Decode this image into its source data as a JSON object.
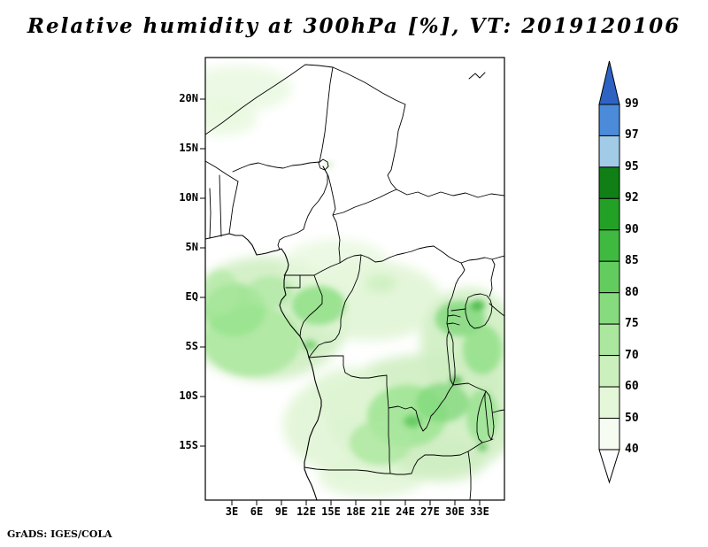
{
  "title": "Relative humidity at 300hPa [%], VT: 2019120106",
  "footer": "GrADS: IGES/COLA",
  "map": {
    "lat_ticks": [
      {
        "label": "20N",
        "value": 20
      },
      {
        "label": "15N",
        "value": 15
      },
      {
        "label": "10N",
        "value": 10
      },
      {
        "label": "5N",
        "value": 5
      },
      {
        "label": "EQ",
        "value": 0
      },
      {
        "label": "5S",
        "value": -5
      },
      {
        "label": "10S",
        "value": -10
      },
      {
        "label": "15S",
        "value": -15
      }
    ],
    "lon_ticks": [
      {
        "label": "3E",
        "value": 3
      },
      {
        "label": "6E",
        "value": 6
      },
      {
        "label": "9E",
        "value": 9
      },
      {
        "label": "12E",
        "value": 12
      },
      {
        "label": "15E",
        "value": 15
      },
      {
        "label": "18E",
        "value": 18
      },
      {
        "label": "21E",
        "value": 21
      },
      {
        "label": "24E",
        "value": 24
      },
      {
        "label": "27E",
        "value": 27
      },
      {
        "label": "30E",
        "value": 30
      },
      {
        "label": "33E",
        "value": 33
      }
    ]
  },
  "colorbar": {
    "labels": [
      "99",
      "97",
      "95",
      "92",
      "90",
      "85",
      "80",
      "75",
      "70",
      "60",
      "50",
      "40"
    ],
    "segments": [
      {
        "range": ">99",
        "color": "#2E63C4",
        "arrow": "up"
      },
      {
        "range": "97-99",
        "color": "#4C8BD9"
      },
      {
        "range": "95-97",
        "color": "#A2CBE8"
      },
      {
        "range": "92-95",
        "color": "#0F7F16"
      },
      {
        "range": "90-92",
        "color": "#23A126"
      },
      {
        "range": "85-90",
        "color": "#3FB93F"
      },
      {
        "range": "80-85",
        "color": "#62CD5E"
      },
      {
        "range": "75-80",
        "color": "#87DB7F"
      },
      {
        "range": "70-75",
        "color": "#ABE79F"
      },
      {
        "range": "60-70",
        "color": "#CBF0BD"
      },
      {
        "range": "50-60",
        "color": "#E4F7D8"
      },
      {
        "range": "40-50",
        "color": "#F7FCF2"
      },
      {
        "range": "<40",
        "color": "#FFFFFF",
        "arrow": "down"
      }
    ]
  },
  "chart_data": {
    "type": "heatmap",
    "subtype": "filled-contour-geographic-map",
    "title": "Relative humidity at 300hPa [%], VT: 2019120106",
    "variable": "Relative humidity",
    "units": "%",
    "level": "300hPa",
    "valid_time": "2019120106",
    "renderer": "GrADS: IGES/COLA",
    "x_axis": {
      "label": "longitude",
      "tick_labels": [
        "3E",
        "6E",
        "9E",
        "12E",
        "15E",
        "18E",
        "21E",
        "24E",
        "27E",
        "30E",
        "33E"
      ],
      "range_deg_east": [
        0,
        36
      ]
    },
    "y_axis": {
      "label": "latitude",
      "tick_labels": [
        "20N",
        "15N",
        "10N",
        "5N",
        "EQ",
        "5S",
        "10S",
        "15S"
      ],
      "range_deg_north": [
        -20.5,
        24
      ]
    },
    "contour_levels": [
      40,
      50,
      60,
      70,
      75,
      80,
      85,
      90,
      92,
      95,
      97,
      99
    ],
    "palette_low_to_high": [
      "#FFFFFF",
      "#F7FCF2",
      "#E4F7D8",
      "#CBF0BD",
      "#ABE79F",
      "#87DB7F",
      "#62CD5E",
      "#3FB93F",
      "#23A126",
      "#0F7F16",
      "#A2CBE8",
      "#4C8BD9",
      "#2E63C4"
    ],
    "legend_position": "right-vertical-with-end-arrows",
    "grid": false,
    "shaded_regions_estimated": [
      {
        "area": "Gulf of Guinea / Gabon-Congo coast",
        "lon_e": [
          0,
          12
        ],
        "lat_n": [
          -8,
          3
        ],
        "rh_percent": "55-80"
      },
      {
        "area": "Congo basin along equator",
        "lon_e": [
          10,
          23
        ],
        "lat_n": [
          -4,
          3
        ],
        "rh_percent": "45-75"
      },
      {
        "area": "Lake Victoria / East Africa",
        "lon_e": [
          28,
          36
        ],
        "lat_n": [
          -7,
          1
        ],
        "rh_percent": "55-90"
      },
      {
        "area": "southern DRC / Zambia / SW Tanzania",
        "lon_e": [
          12,
          36
        ],
        "lat_n": [
          -18,
          -6
        ],
        "rh_percent": "50-85"
      },
      {
        "area": "northwest corner streaks (Sahara)",
        "lon_e": [
          0,
          9
        ],
        "lat_n": [
          17,
          24
        ],
        "rh_percent": "40-55"
      },
      {
        "area": "remaining unshaded areas",
        "rh_percent": "<40"
      }
    ]
  }
}
